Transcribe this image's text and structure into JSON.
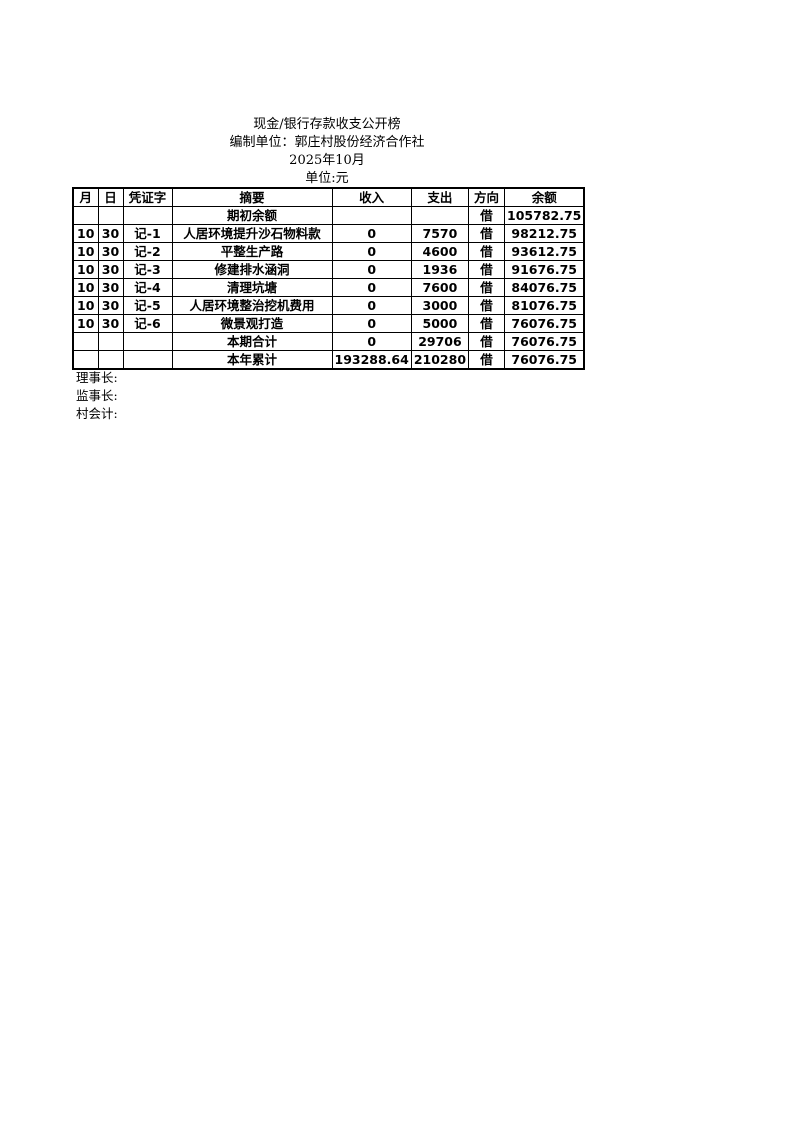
{
  "title": "现金/银行存款收支公开榜",
  "unit_line": "编制单位：郭庄村股份经济合作社",
  "period": "2025年10月",
  "currency": "单位:元",
  "headers": [
    "月",
    "日",
    "凭证字",
    "摘要",
    "收入",
    "支出",
    "方向",
    "余额"
  ],
  "rows": [
    [
      "",
      "",
      "",
      "期初余额",
      "",
      "",
      "借",
      "105782.75"
    ],
    [
      "10",
      "30",
      "记-1",
      "人居环境提升沙石物料款",
      "0",
      "7570",
      "借",
      "98212.75"
    ],
    [
      "10",
      "30",
      "记-2",
      "平整生产路",
      "0",
      "4600",
      "借",
      "93612.75"
    ],
    [
      "10",
      "30",
      "记-3",
      "修建排水涵洞",
      "0",
      "1936",
      "借",
      "91676.75"
    ],
    [
      "10",
      "30",
      "记-4",
      "清理坑塘",
      "0",
      "7600",
      "借",
      "84076.75"
    ],
    [
      "10",
      "30",
      "记-5",
      "人居环境整治挖机费用",
      "0",
      "3000",
      "借",
      "81076.75"
    ],
    [
      "10",
      "30",
      "记-6",
      "微景观打造",
      "0",
      "5000",
      "借",
      "76076.75"
    ],
    [
      "",
      "",
      "",
      "本期合计",
      "0",
      "29706",
      "借",
      "76076.75"
    ],
    [
      "",
      "",
      "",
      "本年累计",
      "193288.64",
      "210280",
      "借",
      "76076.75"
    ]
  ],
  "signatures": [
    "理事长:",
    "监事长:",
    "村会计:"
  ]
}
